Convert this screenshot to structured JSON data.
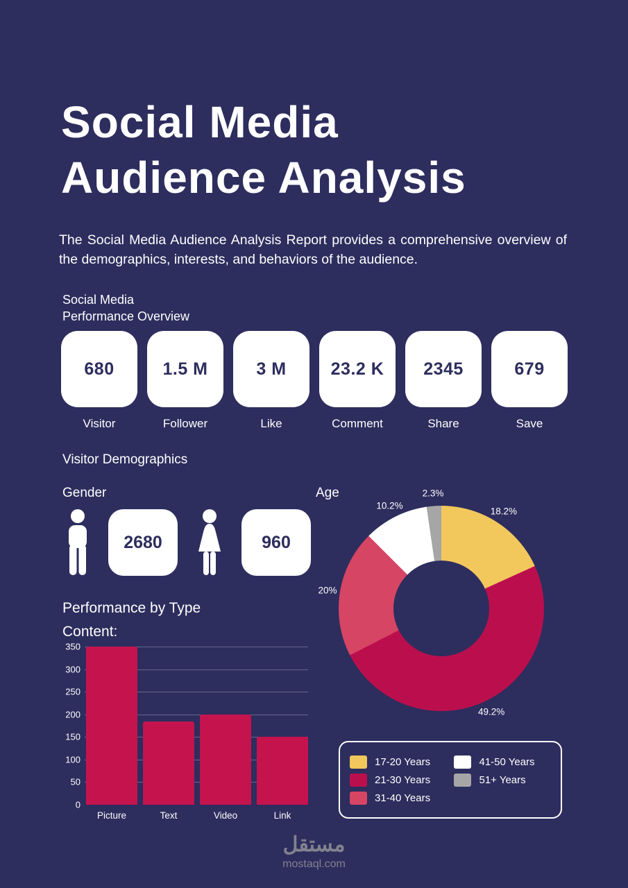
{
  "page": {
    "title_line1": "Social Media",
    "title_line2": "Audience Analysis",
    "subtitle": "The Social Media Audience Analysis Report provides a comprehensive overview of the demographics, interests, and behaviors of the audience."
  },
  "performance": {
    "heading_line1": "Social Media",
    "heading_line2": "Performance Overview",
    "stats": [
      {
        "value": "680",
        "label": "Visitor"
      },
      {
        "value": "1.5 M",
        "label": "Follower"
      },
      {
        "value": "3 M",
        "label": "Like"
      },
      {
        "value": "23.2 K",
        "label": "Comment"
      },
      {
        "value": "2345",
        "label": "Share"
      },
      {
        "value": "679",
        "label": "Save"
      }
    ]
  },
  "demographics": {
    "heading": "Visitor Demographics",
    "gender": {
      "heading": "Gender",
      "male_value": "2680",
      "female_value": "960"
    },
    "age": {
      "heading": "Age"
    }
  },
  "content_performance": {
    "heading_line1": "Performance by Type",
    "heading_line2": "Content:"
  },
  "footer": {
    "brand_arabic": "مستقل",
    "brand_domain": "mostaql.com"
  },
  "colors": {
    "background": "#2D2D5E",
    "card_bg": "#FFFFFF",
    "card_text": "#2D2D5E",
    "bar": "#C5134E"
  },
  "chart_data": [
    {
      "type": "pie",
      "title": "Age",
      "donut": true,
      "categories": [
        "17-20 Years",
        "21-30 Years",
        "31-40 Years",
        "41-50 Years",
        "51+ Years"
      ],
      "values": [
        18.2,
        49.2,
        20,
        10.2,
        2.3
      ],
      "labels": [
        "18.2%",
        "49.2%",
        "20%",
        "10.2%",
        "2.3%"
      ],
      "colors": [
        "#F2C75C",
        "#BB0F4D",
        "#D64563",
        "#FFFFFF",
        "#A6A6A6"
      ],
      "legend_position": "bottom-right"
    },
    {
      "type": "bar",
      "title": "Performance by Type Content",
      "categories": [
        "Picture",
        "Text",
        "Video",
        "Link"
      ],
      "values": [
        350,
        185,
        200,
        150
      ],
      "ylim": [
        0,
        350
      ],
      "yticks": [
        0,
        50,
        100,
        150,
        200,
        250,
        300,
        350
      ],
      "bar_color": "#C5134E",
      "grid": true,
      "legend_position": "none"
    }
  ]
}
